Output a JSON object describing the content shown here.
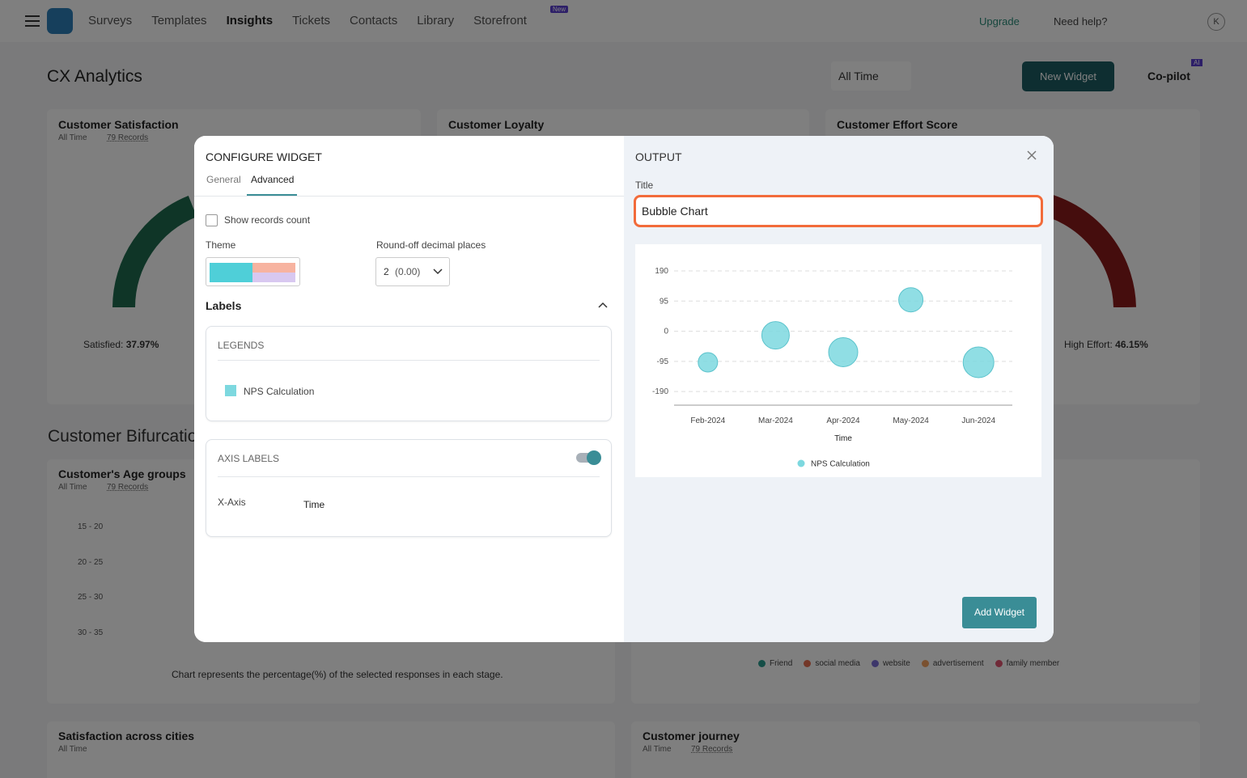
{
  "nav": {
    "items": [
      "Surveys",
      "Templates",
      "Insights",
      "Tickets",
      "Contacts",
      "Library",
      "Storefront"
    ],
    "badge": "New",
    "upgrade": "Upgrade",
    "help": "Need help?",
    "avatar": "K"
  },
  "header": {
    "title": "CX Analytics",
    "time_filter": "All Time",
    "new_widget": "New Widget",
    "copilot": "Co-pilot",
    "copilot_badge": "AI"
  },
  "cards": {
    "satisfaction": {
      "title": "Customer Satisfaction",
      "filter": "All Time",
      "records": "79 Records",
      "legend": "Satisfied:",
      "legend_value": "37.97%"
    },
    "loyalty": {
      "title": "Customer Loyalty"
    },
    "effort": {
      "title": "Customer Effort Score",
      "legend": "High Effort:",
      "legend_value": "46.15%"
    },
    "section": "Customer Bifurcation",
    "age": {
      "title": "Customer's Age groups",
      "filter": "All Time",
      "records": "79 Records",
      "groups": [
        "15 - 20",
        "20 - 25",
        "25 - 30",
        "30 - 35"
      ],
      "note": "Chart represents the percentage(%) of the selected responses in each stage."
    },
    "source_legend": {
      "names": [
        "Friend",
        "social media",
        "website",
        "advertisement",
        "family member"
      ],
      "colors": [
        "#2a9d8f",
        "#e76f51",
        "#7b6fd6",
        "#f4a261",
        "#e05570"
      ]
    },
    "cities": {
      "title": "Satisfaction across cities",
      "filter": "All Time"
    },
    "journey": {
      "title": "Customer journey",
      "filter": "All Time",
      "records": "79 Records"
    }
  },
  "modal": {
    "heading": "CONFIGURE WIDGET",
    "tabs": [
      "General",
      "Advanced"
    ],
    "show_records": "Show records count",
    "theme": "Theme",
    "roundoff": "Round-off decimal places",
    "roundoff_value": "2",
    "roundoff_hint": "(0.00)",
    "labels": "Labels",
    "legends": "LEGENDS",
    "axis_labels": "AXIS LABELS",
    "x_axis": "X-Axis",
    "output": "OUTPUT",
    "title_label": "Title",
    "title_value": "Bubble Chart",
    "add": "Add Widget"
  },
  "chart_data": {
    "type": "bubble",
    "categories": [
      "Feb-2024",
      "Mar-2024",
      "Apr-2024",
      "May-2024",
      "Jun-2024"
    ],
    "x_label": "Time",
    "series": [
      {
        "name": "NPS Calculation",
        "color": "#7dd8df",
        "values": [
          -98,
          -13,
          -66,
          99,
          -98
        ],
        "sizes": [
          12,
          17,
          18,
          15,
          19
        ]
      }
    ],
    "ylim": [
      -233,
      190
    ],
    "yticks": [
      190,
      95,
      0,
      -95,
      -190
    ],
    "grid": true,
    "legend": "bottom"
  }
}
